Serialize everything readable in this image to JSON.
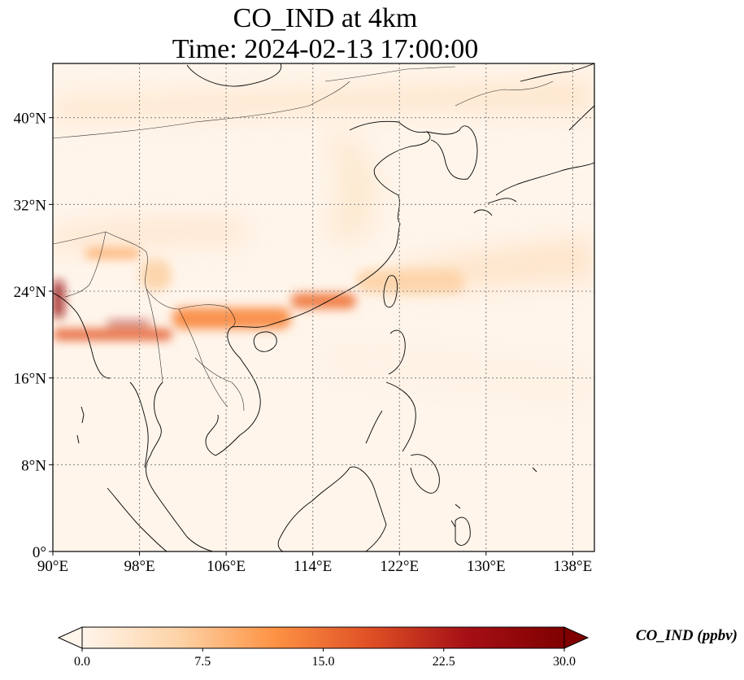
{
  "title": {
    "line1": "CO_IND at 4km",
    "line2": "Time: 2024-02-13 17:00:00"
  },
  "map": {
    "extent": {
      "lon": [
        90,
        140
      ],
      "lat": [
        0,
        45
      ]
    },
    "lon_ticks": [
      {
        "value": 90,
        "label": "90°E"
      },
      {
        "value": 98,
        "label": "98°E"
      },
      {
        "value": 106,
        "label": "106°E"
      },
      {
        "value": 114,
        "label": "114°E"
      },
      {
        "value": 122,
        "label": "122°E"
      },
      {
        "value": 130,
        "label": "130°E"
      },
      {
        "value": 138,
        "label": "138°E"
      }
    ],
    "lat_ticks": [
      {
        "value": 0,
        "label": "0°"
      },
      {
        "value": 8,
        "label": "8°N"
      },
      {
        "value": 16,
        "label": "16°N"
      },
      {
        "value": 24,
        "label": "24°N"
      },
      {
        "value": 32,
        "label": "32°N"
      },
      {
        "value": 40,
        "label": "40°N"
      }
    ],
    "gridlines": "dotted",
    "background_color": "#fff5eb",
    "coastline_color": "#000000",
    "plumes": [
      {
        "lon": [
          90,
          101
        ],
        "lat": [
          19.5,
          20.5
        ],
        "value": 17
      },
      {
        "lon": [
          95,
          99
        ],
        "lat": [
          20.8,
          21.2
        ],
        "value": 24
      },
      {
        "lon": [
          101,
          112
        ],
        "lat": [
          20.5,
          22.5
        ],
        "value": 13
      },
      {
        "lon": [
          112,
          118
        ],
        "lat": [
          22.4,
          23.8
        ],
        "value": 15
      },
      {
        "lon": [
          118,
          128
        ],
        "lat": [
          23.8,
          26
        ],
        "value": 6
      },
      {
        "lon": [
          90,
          91
        ],
        "lat": [
          21.5,
          25
        ],
        "value": 26
      },
      {
        "lon": [
          93,
          98
        ],
        "lat": [
          27,
          28
        ],
        "value": 9
      },
      {
        "lon": [
          98,
          101
        ],
        "lat": [
          24,
          27
        ],
        "value": 6
      }
    ]
  },
  "colorbar": {
    "label": "CO_IND (ppbv)",
    "min": 0.0,
    "max": 30.0,
    "extend": "both",
    "ticks": [
      {
        "value": 0,
        "label": "0.0"
      },
      {
        "value": 7.5,
        "label": "7.5"
      },
      {
        "value": 15,
        "label": "15.0"
      },
      {
        "value": 22.5,
        "label": "22.5"
      },
      {
        "value": 30,
        "label": "30.0"
      }
    ],
    "colormap": [
      "#fff5eb",
      "#fdd3a7",
      "#fd9243",
      "#df4f25",
      "#a50f15",
      "#7f0000"
    ]
  }
}
